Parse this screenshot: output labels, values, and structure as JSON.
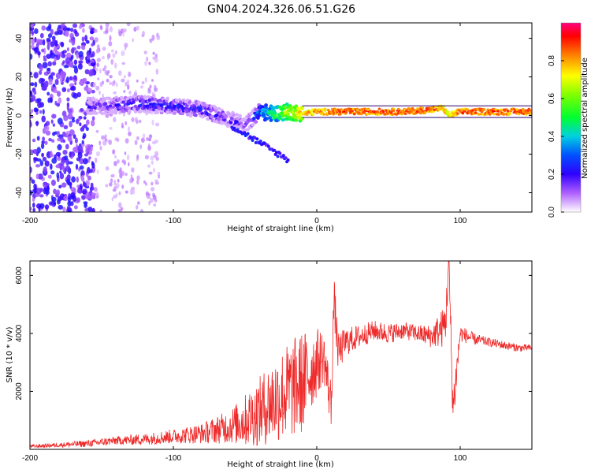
{
  "title": "GN04.2024.326.06.51.G26",
  "chart_data": [
    {
      "type": "heatmap",
      "name": "spectrogram",
      "xlabel": "Height of straight line (km)",
      "ylabel": "Frequency (Hz)",
      "xlim": [
        -200,
        150
      ],
      "ylim": [
        -50,
        48
      ],
      "xticks": [
        "-200",
        "-100",
        "0",
        "100"
      ],
      "xtick_values": [
        -200,
        -100,
        0,
        100
      ],
      "yticks": [
        "-40",
        "-20",
        "0",
        "20",
        "40"
      ],
      "ytick_values": [
        -40,
        -20,
        0,
        20,
        40
      ],
      "colorbar": {
        "label": "Normalized spectral amplitude",
        "range": [
          0,
          1
        ],
        "ticks": [
          "0.0",
          "0.2",
          "0.4",
          "0.6",
          "0.8"
        ],
        "tick_values": [
          0.0,
          0.2,
          0.4,
          0.6,
          0.8
        ]
      },
      "ridge": {
        "description_points_x": [
          -150,
          -125,
          -100,
          -80,
          -60,
          -50,
          -40,
          -30,
          -20,
          -10,
          0,
          20,
          40,
          60,
          80,
          88,
          92,
          100,
          120,
          150
        ],
        "frequency_hz": [
          5,
          6,
          5,
          3,
          -2,
          -5,
          2,
          1,
          2,
          1,
          2,
          2,
          2,
          2,
          3,
          4,
          0,
          2,
          2,
          2
        ],
        "amplitude": [
          0.25,
          0.3,
          0.3,
          0.3,
          0.25,
          0.2,
          0.4,
          0.6,
          0.75,
          0.85,
          0.9,
          0.95,
          0.95,
          0.95,
          0.95,
          0.9,
          0.8,
          0.95,
          0.95,
          0.95
        ]
      },
      "noise_region_x": [
        -200,
        -155
      ]
    },
    {
      "type": "line",
      "name": "snr",
      "xlabel": "Height of straight line (km)",
      "ylabel": "SNR (10 * v/v)",
      "xlim": [
        -200,
        150
      ],
      "ylim": [
        0,
        6500
      ],
      "xticks": [
        "-200",
        "-100",
        "0",
        "100"
      ],
      "xtick_values": [
        -200,
        -100,
        0,
        100
      ],
      "yticks": [
        "2000",
        "4000",
        "6000"
      ],
      "ytick_values": [
        2000,
        4000,
        6000
      ],
      "series": [
        {
          "name": "SNR",
          "color": "#ee2a2a",
          "x": [
            -200,
            -180,
            -160,
            -140,
            -120,
            -100,
            -80,
            -60,
            -50,
            -40,
            -30,
            -20,
            -10,
            0,
            5,
            10,
            12,
            15,
            20,
            30,
            40,
            50,
            60,
            70,
            80,
            88,
            90,
            92,
            95,
            100,
            110,
            120,
            130,
            140,
            150
          ],
          "values": [
            100,
            150,
            200,
            300,
            350,
            450,
            550,
            800,
            1000,
            1300,
            1700,
            2000,
            2300,
            3000,
            3200,
            1500,
            5200,
            3300,
            3700,
            3900,
            4100,
            4000,
            4100,
            4000,
            3900,
            4200,
            4500,
            6500,
            1400,
            4000,
            3800,
            3700,
            3600,
            3500,
            3500
          ],
          "spread": [
            60,
            80,
            120,
            150,
            200,
            250,
            350,
            600,
            900,
            1200,
            1500,
            1700,
            1800,
            1200,
            900,
            900,
            800,
            700,
            500,
            400,
            350,
            350,
            300,
            300,
            400,
            700,
            800,
            600,
            900,
            300,
            200,
            150,
            150,
            130,
            120
          ]
        }
      ]
    }
  ]
}
